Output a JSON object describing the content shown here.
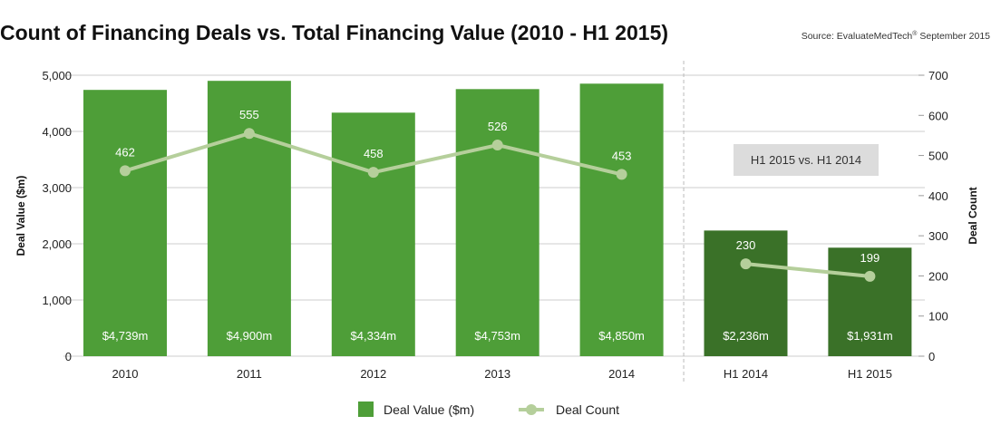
{
  "chart_data": {
    "type": "bar",
    "title": "Count of Financing Deals vs. Total Financing Value (2010 - H1 2015)",
    "source": "Source: EvaluateMedTech",
    "source_superscript": "®",
    "source_date": "September 2015",
    "categories": [
      "2010",
      "2011",
      "2012",
      "2013",
      "2014",
      "H1 2014",
      "H1 2015"
    ],
    "series": [
      {
        "name": "Deal Value ($m)",
        "type": "bar",
        "axis": "left",
        "values": [
          4739,
          4900,
          4334,
          4753,
          4850,
          2236,
          1931
        ],
        "labels": [
          "$4,739m",
          "$4,900m",
          "$4,334m",
          "$4,753m",
          "$4,850m",
          "$2,236m",
          "$1,931m"
        ]
      },
      {
        "name": "Deal Count",
        "type": "line",
        "axis": "right",
        "values": [
          462,
          555,
          458,
          526,
          453,
          230,
          199
        ],
        "labels": [
          "462",
          "555",
          "458",
          "526",
          "453",
          "230",
          "199"
        ]
      }
    ],
    "ylabel": "Deal Value ($m)",
    "ylabel_right": "Deal Count",
    "ylim": [
      0,
      5000
    ],
    "ylim_right": [
      0,
      700
    ],
    "yticks": [
      0,
      1000,
      2000,
      3000,
      4000,
      5000
    ],
    "yticks_labels": [
      "0",
      "1,000",
      "2,000",
      "3,000",
      "4,000",
      "5,000"
    ],
    "yticks_right": [
      0,
      100,
      200,
      300,
      400,
      500,
      600,
      700
    ],
    "yticks_right_labels": [
      "0",
      "100",
      "200",
      "300",
      "400",
      "500",
      "600",
      "700"
    ],
    "grid": true,
    "separator_after_category": "2014",
    "annotation": "H1 2015 vs. H1 2014",
    "legend": [
      "Deal Value ($m)",
      "Deal Count"
    ],
    "legend_position": "bottom-center",
    "colors": {
      "bar_full_year": "#4e9e38",
      "bar_half_year": "#3a7128",
      "line": "#b5cf9b",
      "grid": "#cccccc",
      "annotation_bg": "#dcdcdc"
    }
  }
}
